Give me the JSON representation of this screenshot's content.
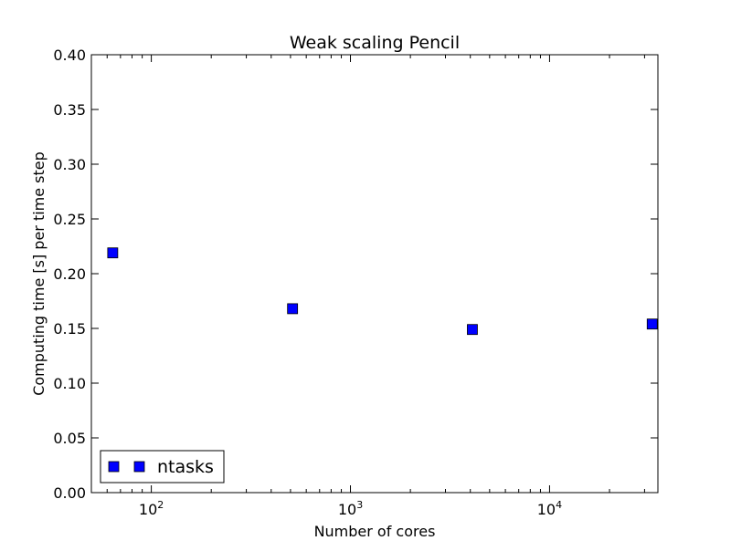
{
  "chart_data": {
    "type": "scatter",
    "title": "Weak scaling Pencil",
    "xlabel": "Number of cores",
    "ylabel": "Computing time [s] per time step",
    "xscale": "log",
    "xlim": [
      50,
      35000
    ],
    "ylim": [
      0,
      0.4
    ],
    "xticks": [
      {
        "value": 100,
        "base": "10",
        "exp": "2"
      },
      {
        "value": 1000,
        "base": "10",
        "exp": "3"
      },
      {
        "value": 10000,
        "base": "10",
        "exp": "4"
      }
    ],
    "yticks": [
      "0.00",
      "0.05",
      "0.10",
      "0.15",
      "0.20",
      "0.25",
      "0.30",
      "0.35",
      "0.40"
    ],
    "grid": false,
    "legend_position": "lower-left",
    "series": [
      {
        "name": "ntasks",
        "marker": "square",
        "color": "#0000ff",
        "points": [
          {
            "x": 64,
            "y": 0.219
          },
          {
            "x": 512,
            "y": 0.168
          },
          {
            "x": 4096,
            "y": 0.149
          },
          {
            "x": 32768,
            "y": 0.154
          }
        ]
      }
    ]
  }
}
